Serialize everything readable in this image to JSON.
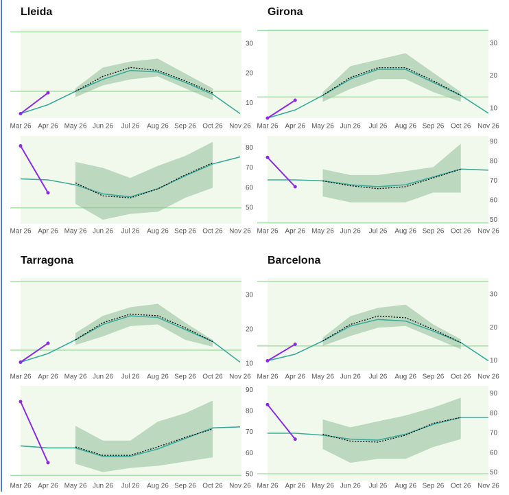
{
  "colors": {
    "observed": "#8a2be2",
    "model": "#3aaa9d",
    "forecast": "#111111",
    "band": "#8fbf9c",
    "threshold": "#a6e0a6",
    "plot_bg": "#f1f9ec"
  },
  "chart_data": [
    {
      "type": "line",
      "title": "Lleida",
      "categories": [
        "Mar 26",
        "Apr 26",
        "May 26",
        "Jun 26",
        "Jul 26",
        "Aug 26",
        "Sep 26",
        "Oct 26",
        "Nov 26"
      ],
      "ylim": [
        5,
        35
      ],
      "yticks": [
        10,
        20,
        30
      ],
      "hlines": [
        34,
        14
      ],
      "observed": [
        6.5,
        13.5,
        null,
        null,
        null,
        null,
        null,
        null,
        null
      ],
      "model": [
        6.5,
        9.5,
        14,
        18,
        21,
        20.5,
        17,
        13,
        6.5
      ],
      "forecast": [
        null,
        null,
        14,
        19,
        22,
        21,
        17.5,
        13.5,
        null
      ],
      "band_low": [
        null,
        null,
        12,
        16,
        18,
        19,
        15,
        11,
        null
      ],
      "band_high": [
        null,
        null,
        15,
        22,
        24,
        25,
        20,
        15,
        null
      ]
    },
    {
      "type": "line",
      "categories": [
        "Mar 26",
        "Apr 26",
        "May 26",
        "Jun 26",
        "Jul 26",
        "Aug 26",
        "Sep 26",
        "Oct 26",
        "Nov 26"
      ],
      "ylim": [
        42,
        86
      ],
      "yticks": [
        50,
        60,
        70,
        80
      ],
      "hlines": [
        50
      ],
      "observed": [
        81,
        57.5,
        null,
        null,
        null,
        null,
        null,
        null,
        null
      ],
      "model": [
        64.5,
        64,
        61.5,
        57,
        55.5,
        59.5,
        66,
        72,
        75.5
      ],
      "forecast": [
        null,
        null,
        62.5,
        56,
        55,
        59.5,
        66.5,
        72.5,
        null
      ],
      "band_low": [
        null,
        null,
        52,
        44,
        47,
        48,
        55,
        60,
        null
      ],
      "band_high": [
        null,
        null,
        73,
        70,
        65,
        71,
        76,
        83,
        null
      ]
    },
    {
      "type": "line",
      "title": "Girona",
      "categories": [
        "Mar 26",
        "Apr 26",
        "May 26",
        "Jun 26",
        "Jul 26",
        "Aug 26",
        "Sep 26",
        "Oct 26",
        "Nov 26"
      ],
      "ylim": [
        7,
        34.5
      ],
      "yticks": [
        10,
        20,
        30
      ],
      "hlines": [
        34,
        13.5
      ],
      "observed": [
        7,
        12.5,
        null,
        null,
        null,
        null,
        null,
        null,
        null
      ],
      "model": [
        7,
        9.5,
        14,
        19,
        22,
        22,
        18,
        14,
        8.5
      ],
      "forecast": [
        null,
        null,
        14,
        19.5,
        22.5,
        22.5,
        18.5,
        14,
        null
      ],
      "band_low": [
        null,
        null,
        12,
        16,
        19,
        19,
        15,
        12,
        null
      ],
      "band_high": [
        null,
        null,
        15,
        23,
        25,
        27,
        21,
        15,
        null
      ]
    },
    {
      "type": "line",
      "categories": [
        "Mar 26",
        "Apr 26",
        "May 26",
        "Jun 26",
        "Jul 26",
        "Aug 26",
        "Sep 26",
        "Oct 26",
        "Nov 26"
      ],
      "ylim": [
        48,
        93
      ],
      "yticks": [
        50,
        60,
        70,
        80,
        90
      ],
      "hlines": [
        48.5
      ],
      "observed": [
        82,
        67,
        null,
        null,
        null,
        null,
        null,
        null,
        null
      ],
      "model": [
        70.5,
        70.5,
        70,
        68,
        67,
        68,
        72,
        76,
        75.5
      ],
      "forecast": [
        null,
        null,
        70,
        67.5,
        66,
        67,
        71.5,
        76,
        null
      ],
      "band_low": [
        null,
        null,
        62,
        59,
        59,
        59,
        64,
        64,
        null
      ],
      "band_high": [
        null,
        null,
        76,
        73,
        73,
        75,
        77,
        89,
        null
      ]
    },
    {
      "type": "line",
      "title": "Tarragona",
      "categories": [
        "Mar 26",
        "Apr 26",
        "May 26",
        "Jun 26",
        "Jul 26",
        "Aug 26",
        "Sep 26",
        "Oct 26",
        "Nov 26"
      ],
      "ylim": [
        8,
        35
      ],
      "yticks": [
        10,
        20,
        30
      ],
      "hlines": [
        34,
        14
      ],
      "observed": [
        10.5,
        16,
        null,
        null,
        null,
        null,
        null,
        null,
        null
      ],
      "model": [
        10.5,
        13,
        17,
        21.5,
        24,
        23.5,
        20,
        16.5,
        10.5
      ],
      "forecast": [
        null,
        null,
        17,
        22,
        24.5,
        24,
        20.5,
        16.5,
        null
      ],
      "band_low": [
        null,
        null,
        15.5,
        18,
        21,
        21.5,
        17,
        15,
        null
      ],
      "band_high": [
        null,
        null,
        19,
        24,
        26.5,
        27.5,
        22,
        17,
        null
      ]
    },
    {
      "type": "line",
      "categories": [
        "Mar 26",
        "Apr 26",
        "May 26",
        "Jun 26",
        "Jul 26",
        "Aug 26",
        "Sep 26",
        "Oct 26",
        "Nov 26"
      ],
      "ylim": [
        47,
        92
      ],
      "yticks": [
        50,
        60,
        70,
        80,
        90
      ],
      "hlines": [
        49.5
      ],
      "observed": [
        84.5,
        55.5,
        null,
        null,
        null,
        null,
        null,
        null,
        null
      ],
      "model": [
        63.5,
        62.5,
        62.5,
        58.5,
        58.5,
        62,
        67,
        72,
        72.5
      ],
      "forecast": [
        null,
        null,
        63,
        59,
        59,
        63,
        67.5,
        71.5,
        null
      ],
      "band_low": [
        null,
        null,
        55,
        51,
        53,
        54,
        56,
        58,
        null
      ],
      "band_high": [
        null,
        null,
        73,
        66,
        66,
        75,
        79,
        85,
        null
      ]
    },
    {
      "type": "line",
      "title": "Barcelona",
      "categories": [
        "Mar 26",
        "Apr 26",
        "May 26",
        "Jun 26",
        "Jul 26",
        "Aug 26",
        "Sep 26",
        "Oct 26",
        "Nov 26"
      ],
      "ylim": [
        7,
        35
      ],
      "yticks": [
        10,
        20,
        30
      ],
      "hlines": [
        34,
        14.5
      ],
      "observed": [
        10,
        15,
        null,
        null,
        null,
        null,
        null,
        null,
        null
      ],
      "model": [
        10,
        12,
        16,
        20.5,
        22.5,
        22,
        19,
        15.5,
        10
      ],
      "forecast": [
        null,
        null,
        16,
        21,
        23.5,
        23,
        19.5,
        15.5,
        null
      ],
      "band_low": [
        null,
        null,
        14.5,
        17.5,
        20,
        20.5,
        17,
        13.5,
        null
      ],
      "band_high": [
        null,
        null,
        17,
        23.5,
        26,
        27,
        21,
        16.5,
        null
      ]
    },
    {
      "type": "line",
      "categories": [
        "Mar 26",
        "Apr 26",
        "May 26",
        "Jun 26",
        "Jul 26",
        "Aug 26",
        "Sep 26",
        "Oct 26",
        "Nov 26"
      ],
      "ylim": [
        46,
        94
      ],
      "yticks": [
        50,
        60,
        70,
        80,
        90
      ],
      "hlines": [
        49.5
      ],
      "observed": [
        84.5,
        67,
        null,
        null,
        null,
        null,
        null,
        null,
        null
      ],
      "model": [
        70,
        70,
        69,
        67,
        66.5,
        69.5,
        74.5,
        78,
        78
      ],
      "forecast": [
        null,
        null,
        69.5,
        66,
        65.5,
        69,
        75,
        78,
        null
      ],
      "band_low": [
        null,
        null,
        62,
        55,
        57,
        57,
        63,
        67,
        null
      ],
      "band_high": [
        null,
        null,
        77,
        73,
        76,
        79,
        83,
        88,
        null
      ]
    }
  ]
}
